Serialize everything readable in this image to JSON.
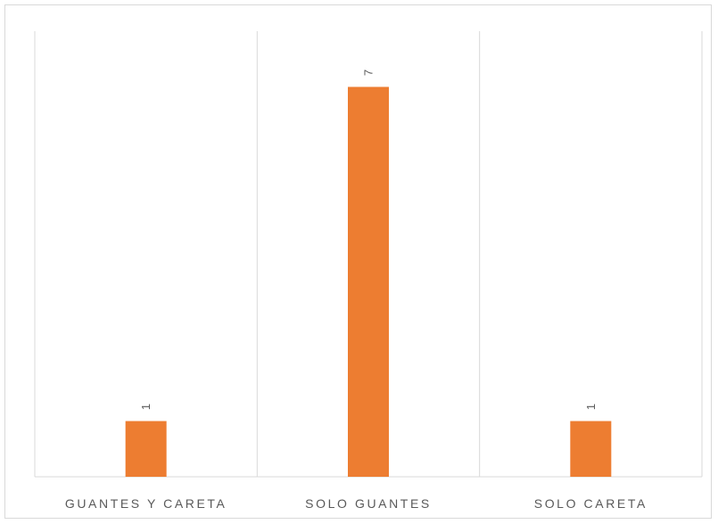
{
  "chart_data": {
    "type": "bar",
    "categories": [
      "GUANTES Y CARETA",
      "SOLO GUANTES",
      "SOLO CARETA"
    ],
    "values": [
      1,
      7,
      1
    ],
    "data_labels": [
      "1",
      "7",
      "1"
    ],
    "title": "",
    "xlabel": "",
    "ylabel": "",
    "ylim": [
      0,
      8
    ],
    "grid": "vertical-category-separators",
    "legend": "none",
    "bar_color": "#ed7d31",
    "gridline_color": "#d9d9d9",
    "label_color": "#595959"
  }
}
